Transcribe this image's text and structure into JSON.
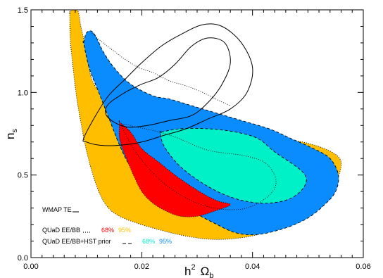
{
  "colors": {
    "quad_68": "#ff0000",
    "quad_95": "#ffbf00",
    "hst_68": "#00f0c8",
    "hst_95": "#0a8cff",
    "frame": "#000000"
  },
  "chart_data": {
    "type": "contour",
    "title": "",
    "xlabel": "h",
    "xlabel_sup": "2",
    "xlabel_omega": "Ω",
    "xlabel_sub": "b",
    "ylabel": "n",
    "ylabel_sub": "s",
    "xlim": [
      0.0,
      0.06
    ],
    "ylim": [
      0.0,
      1.5
    ],
    "x_ticks": [
      0.0,
      0.02,
      0.04,
      0.06
    ],
    "x_tick_labels": [
      "0.00",
      "0.02",
      "0.04",
      "0.06"
    ],
    "y_ticks": [
      0.0,
      0.5,
      1.0,
      1.5
    ],
    "y_tick_labels": [
      "0.0",
      "0.5",
      "1.0",
      "1.5"
    ],
    "legend_placement": "bottom-left",
    "legend": [
      {
        "label": "WMAP TE",
        "line": "solid",
        "pct": []
      },
      {
        "label": "QUaD EE/BB",
        "line": "dotted",
        "pct": [
          {
            "text": "68%",
            "color_key": "quad_68"
          },
          {
            "text": "95%",
            "color_key": "quad_95"
          }
        ]
      },
      {
        "label": "QUaD EE/BB+HST prior",
        "line": "dashed",
        "pct": [
          {
            "text": "68%",
            "color_key": "hst_68"
          },
          {
            "text": "95%",
            "color_key": "hst_95"
          }
        ]
      }
    ],
    "regions": [
      {
        "id": "quad-95-region",
        "fill_key": "quad_95",
        "outline": "dotted",
        "points": [
          [
            0.007,
            1.48
          ],
          [
            0.0075,
            1.5
          ],
          [
            0.0085,
            1.49
          ],
          [
            0.009,
            1.4
          ],
          [
            0.0097,
            1.3
          ],
          [
            0.0103,
            1.18
          ],
          [
            0.011,
            1.08
          ],
          [
            0.0125,
            1.0
          ],
          [
            0.016,
            0.92
          ],
          [
            0.02,
            0.86
          ],
          [
            0.025,
            0.82
          ],
          [
            0.03,
            0.79
          ],
          [
            0.035,
            0.77
          ],
          [
            0.04,
            0.75
          ],
          [
            0.045,
            0.72
          ],
          [
            0.049,
            0.7
          ],
          [
            0.053,
            0.66
          ],
          [
            0.0555,
            0.61
          ],
          [
            0.056,
            0.55
          ],
          [
            0.055,
            0.45
          ],
          [
            0.0545,
            0.4
          ],
          [
            0.051,
            0.32
          ],
          [
            0.047,
            0.22
          ],
          [
            0.042,
            0.15
          ],
          [
            0.038,
            0.12
          ],
          [
            0.033,
            0.11
          ],
          [
            0.028,
            0.13
          ],
          [
            0.023,
            0.17
          ],
          [
            0.019,
            0.21
          ],
          [
            0.016,
            0.25
          ],
          [
            0.014,
            0.3
          ],
          [
            0.0125,
            0.38
          ],
          [
            0.0112,
            0.5
          ],
          [
            0.01,
            0.65
          ],
          [
            0.009,
            0.82
          ],
          [
            0.0082,
            0.98
          ],
          [
            0.0076,
            1.15
          ],
          [
            0.0071,
            1.32
          ],
          [
            0.007,
            1.48
          ]
        ]
      },
      {
        "id": "hst-95-region",
        "fill_key": "hst_95",
        "outline": "dashed",
        "points": [
          [
            0.0095,
            1.3
          ],
          [
            0.01,
            1.36
          ],
          [
            0.011,
            1.37
          ],
          [
            0.012,
            1.32
          ],
          [
            0.013,
            1.25
          ],
          [
            0.015,
            1.15
          ],
          [
            0.018,
            1.05
          ],
          [
            0.022,
            0.98
          ],
          [
            0.025,
            0.96
          ],
          [
            0.029,
            0.92
          ],
          [
            0.033,
            0.88
          ],
          [
            0.038,
            0.83
          ],
          [
            0.043,
            0.78
          ],
          [
            0.047,
            0.72
          ],
          [
            0.051,
            0.66
          ],
          [
            0.054,
            0.6
          ],
          [
            0.0555,
            0.5
          ],
          [
            0.055,
            0.4
          ],
          [
            0.053,
            0.32
          ],
          [
            0.05,
            0.24
          ],
          [
            0.046,
            0.18
          ],
          [
            0.041,
            0.14
          ],
          [
            0.037,
            0.15
          ],
          [
            0.033,
            0.21
          ],
          [
            0.029,
            0.28
          ],
          [
            0.025,
            0.35
          ],
          [
            0.021,
            0.45
          ],
          [
            0.018,
            0.55
          ],
          [
            0.016,
            0.68
          ],
          [
            0.014,
            0.85
          ],
          [
            0.012,
            1.02
          ],
          [
            0.0105,
            1.15
          ],
          [
            0.0095,
            1.3
          ]
        ]
      },
      {
        "id": "quad-68-region",
        "fill_key": "quad_68",
        "outline": "dotted",
        "points": [
          [
            0.016,
            0.82
          ],
          [
            0.018,
            0.76
          ],
          [
            0.02,
            0.66
          ],
          [
            0.023,
            0.58
          ],
          [
            0.026,
            0.5
          ],
          [
            0.029,
            0.43
          ],
          [
            0.032,
            0.37
          ],
          [
            0.034,
            0.34
          ],
          [
            0.036,
            0.32
          ],
          [
            0.033,
            0.28
          ],
          [
            0.03,
            0.25
          ],
          [
            0.027,
            0.25
          ],
          [
            0.0245,
            0.28
          ],
          [
            0.022,
            0.33
          ],
          [
            0.02,
            0.4
          ],
          [
            0.0185,
            0.5
          ],
          [
            0.017,
            0.62
          ],
          [
            0.016,
            0.72
          ],
          [
            0.016,
            0.82
          ]
        ]
      },
      {
        "id": "hst-68-region",
        "fill_key": "hst_68",
        "outline": "dashed",
        "points": [
          [
            0.0235,
            0.76
          ],
          [
            0.027,
            0.78
          ],
          [
            0.032,
            0.78
          ],
          [
            0.037,
            0.76
          ],
          [
            0.041,
            0.72
          ],
          [
            0.044,
            0.64
          ],
          [
            0.049,
            0.52
          ],
          [
            0.0495,
            0.44
          ],
          [
            0.047,
            0.36
          ],
          [
            0.043,
            0.33
          ],
          [
            0.039,
            0.34
          ],
          [
            0.035,
            0.38
          ],
          [
            0.031,
            0.45
          ],
          [
            0.027,
            0.55
          ],
          [
            0.0245,
            0.65
          ],
          [
            0.0235,
            0.72
          ],
          [
            0.0235,
            0.76
          ]
        ]
      }
    ],
    "contour_lines": [
      {
        "id": "wmap-inner-contour",
        "style": "solid",
        "points": [
          [
            0.014,
            0.93
          ],
          [
            0.017,
            1.0
          ],
          [
            0.02,
            1.05
          ],
          [
            0.023,
            1.09
          ],
          [
            0.026,
            1.17
          ],
          [
            0.029,
            1.28
          ],
          [
            0.032,
            1.33
          ],
          [
            0.035,
            1.3
          ],
          [
            0.036,
            1.18
          ],
          [
            0.0345,
            1.05
          ],
          [
            0.032,
            0.94
          ],
          [
            0.029,
            0.86
          ],
          [
            0.025,
            0.83
          ],
          [
            0.021,
            0.8
          ],
          [
            0.0175,
            0.79
          ],
          [
            0.015,
            0.82
          ],
          [
            0.0135,
            0.87
          ],
          [
            0.014,
            0.93
          ]
        ]
      },
      {
        "id": "wmap-outer-contour",
        "style": "solid",
        "points": [
          [
            0.0095,
            0.72
          ],
          [
            0.0115,
            0.85
          ],
          [
            0.014,
            0.98
          ],
          [
            0.017,
            1.08
          ],
          [
            0.02,
            1.18
          ],
          [
            0.0235,
            1.28
          ],
          [
            0.027,
            1.35
          ],
          [
            0.031,
            1.41
          ],
          [
            0.0345,
            1.4
          ],
          [
            0.038,
            1.3
          ],
          [
            0.04,
            1.15
          ],
          [
            0.039,
            1.0
          ],
          [
            0.036,
            0.9
          ],
          [
            0.032,
            0.84
          ],
          [
            0.028,
            0.78
          ],
          [
            0.024,
            0.74
          ],
          [
            0.02,
            0.7
          ],
          [
            0.016,
            0.68
          ],
          [
            0.0125,
            0.68
          ],
          [
            0.01,
            0.7
          ],
          [
            0.0095,
            0.72
          ]
        ]
      },
      {
        "id": "quad-68-dotted-contour",
        "style": "dotted",
        "points": [
          [
            0.0165,
            0.8
          ],
          [
            0.019,
            0.79
          ],
          [
            0.022,
            0.77
          ],
          [
            0.026,
            0.73
          ],
          [
            0.032,
            0.65
          ],
          [
            0.038,
            0.62
          ],
          [
            0.042,
            0.58
          ],
          [
            0.044,
            0.5
          ],
          [
            0.044,
            0.42
          ],
          [
            0.042,
            0.35
          ],
          [
            0.039,
            0.3
          ],
          [
            0.036,
            0.29
          ],
          [
            0.033,
            0.3
          ],
          [
            0.03,
            0.33
          ],
          [
            0.027,
            0.38
          ],
          [
            0.024,
            0.45
          ],
          [
            0.021,
            0.55
          ],
          [
            0.0185,
            0.66
          ],
          [
            0.0165,
            0.8
          ]
        ]
      },
      {
        "id": "quad-95-dotted-inner",
        "style": "dotted",
        "points": [
          [
            0.011,
            1.36
          ],
          [
            0.013,
            1.3
          ],
          [
            0.015,
            1.25
          ],
          [
            0.017,
            1.2
          ],
          [
            0.0195,
            1.15
          ],
          [
            0.022,
            1.12
          ],
          [
            0.025,
            1.07
          ],
          [
            0.028,
            1.04
          ],
          [
            0.031,
            1.0
          ],
          [
            0.034,
            0.95
          ],
          [
            0.036,
            0.92
          ]
        ]
      }
    ]
  }
}
